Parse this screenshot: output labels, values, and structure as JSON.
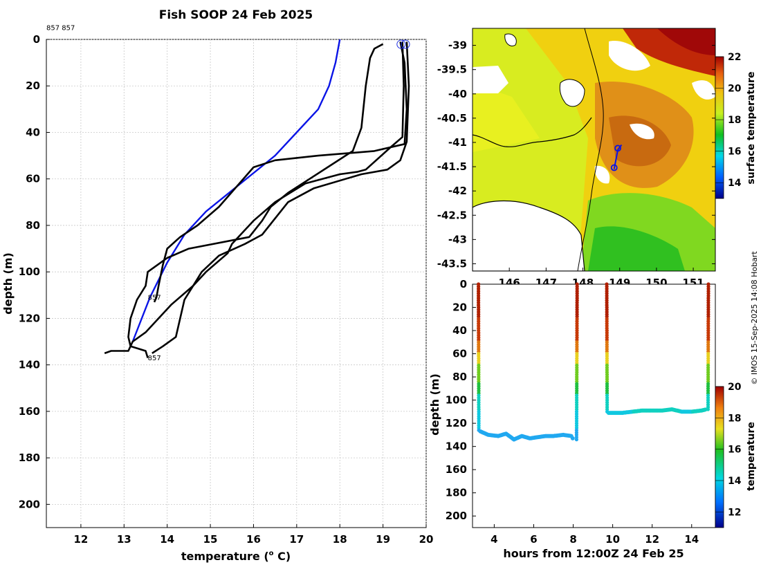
{
  "title": "Fish SOOP 24 Feb 2025",
  "credit": "© IMOS 15-Sep-2025 14:08 Hobart",
  "colors": {
    "profile_line": "#000000",
    "climatology_line": "#0a14e6",
    "marker": "#1f2fe0",
    "grid": "#c8c8c8",
    "land": "#ffffff",
    "coast": "#000000"
  },
  "chart_data": [
    {
      "name": "profile",
      "type": "line",
      "title": "Fish SOOP 24 Feb 2025",
      "xlabel": "temperature (",
      "xlabel_sup": "o",
      "xlabel_end": " C)",
      "ylabel": "depth (m)",
      "xlim": [
        11.2,
        20
      ],
      "ylim": [
        0,
        210
      ],
      "y_reversed": true,
      "xticks": [
        12,
        13,
        14,
        15,
        16,
        17,
        18,
        19,
        20
      ],
      "yticks": [
        0,
        20,
        40,
        60,
        80,
        100,
        120,
        140,
        160,
        180,
        200
      ],
      "grid": true,
      "annotations": [
        {
          "text": "857 857",
          "x": 11.2,
          "y": -4
        },
        {
          "text": "857",
          "x": 13.55,
          "y": 112
        },
        {
          "text": "857",
          "x": 13.55,
          "y": 138
        }
      ],
      "surface_markers": [
        {
          "x": 19.42,
          "y": 1.2
        },
        {
          "x": 19.52,
          "y": 1.2
        }
      ],
      "series": [
        {
          "name": "climatology",
          "color": "#0a14e6",
          "points": [
            [
              18.0,
              0
            ],
            [
              17.9,
              10
            ],
            [
              17.75,
              20
            ],
            [
              17.5,
              30
            ],
            [
              17.0,
              40
            ],
            [
              16.5,
              50
            ],
            [
              15.7,
              62
            ],
            [
              14.9,
              74
            ],
            [
              14.4,
              84
            ],
            [
              14.0,
              96
            ],
            [
              13.6,
              111
            ],
            [
              13.2,
              130
            ]
          ]
        },
        {
          "name": "cast-1",
          "color": "#000000",
          "points": [
            [
              19.4,
              1
            ],
            [
              19.5,
              10
            ],
            [
              19.55,
              30
            ],
            [
              19.5,
              45
            ],
            [
              18.8,
              48
            ],
            [
              17.5,
              50
            ],
            [
              16.5,
              52
            ],
            [
              16.0,
              55
            ],
            [
              15.2,
              72
            ],
            [
              14.7,
              80
            ],
            [
              14.3,
              85
            ],
            [
              14.0,
              90
            ],
            [
              13.9,
              97
            ],
            [
              13.8,
              106
            ],
            [
              13.75,
              111
            ],
            [
              13.7,
              113
            ]
          ]
        },
        {
          "name": "cast-2",
          "color": "#000000",
          "points": [
            [
              19.45,
              1
            ],
            [
              19.48,
              20
            ],
            [
              19.45,
              42
            ],
            [
              19.2,
              46
            ],
            [
              18.6,
              56
            ],
            [
              18.4,
              57
            ],
            [
              18.0,
              58
            ],
            [
              17.2,
              62
            ],
            [
              16.5,
              70
            ],
            [
              16.0,
              78
            ],
            [
              15.5,
              88
            ],
            [
              15.4,
              92
            ],
            [
              14.9,
              100
            ],
            [
              14.6,
              106
            ],
            [
              14.1,
              114
            ],
            [
              13.5,
              126
            ],
            [
              13.2,
              130
            ],
            [
              13.1,
              134
            ],
            [
              12.7,
              134
            ],
            [
              12.55,
              135
            ]
          ]
        },
        {
          "name": "cast-3",
          "color": "#000000",
          "points": [
            [
              19.0,
              2
            ],
            [
              18.8,
              4
            ],
            [
              18.7,
              8
            ],
            [
              18.6,
              20
            ],
            [
              18.5,
              38
            ],
            [
              18.3,
              48
            ],
            [
              17.8,
              54
            ],
            [
              17.3,
              60
            ],
            [
              16.8,
              66
            ],
            [
              16.4,
              72
            ],
            [
              16.2,
              78
            ],
            [
              15.9,
              85
            ],
            [
              14.5,
              90
            ],
            [
              14.0,
              94
            ],
            [
              13.55,
              100
            ],
            [
              13.5,
              106
            ],
            [
              13.3,
              112
            ],
            [
              13.15,
              120
            ],
            [
              13.1,
              128
            ],
            [
              13.15,
              132
            ],
            [
              13.5,
              134
            ],
            [
              13.55,
              137
            ]
          ]
        },
        {
          "name": "cast-4",
          "color": "#000000",
          "points": [
            [
              19.55,
              1
            ],
            [
              19.6,
              20
            ],
            [
              19.55,
              44
            ],
            [
              19.4,
              52
            ],
            [
              19.1,
              56
            ],
            [
              18.5,
              58
            ],
            [
              17.4,
              64
            ],
            [
              16.8,
              70
            ],
            [
              16.2,
              84
            ],
            [
              15.8,
              88
            ],
            [
              15.2,
              93
            ],
            [
              14.8,
              100
            ],
            [
              14.6,
              106
            ],
            [
              14.4,
              112
            ],
            [
              14.3,
              120
            ],
            [
              14.2,
              128
            ],
            [
              13.9,
              132
            ],
            [
              13.65,
              135
            ]
          ]
        }
      ]
    },
    {
      "name": "sst-map",
      "type": "heatmap",
      "xlim": [
        145.0,
        151.6
      ],
      "ylim": [
        -43.65,
        -38.65
      ],
      "xticks": [
        146,
        147,
        148,
        149,
        150,
        151
      ],
      "yticks": [
        -39,
        -39.5,
        -40,
        -40.5,
        -41,
        -41.5,
        -42,
        -42.5,
        -43,
        -43.5
      ],
      "colorbar_label": "surface temperature",
      "colorbar_range": [
        13,
        22
      ],
      "colorbar_ticks": [
        14,
        16,
        18,
        20,
        22
      ],
      "track": [
        [
          149.05,
          -41.05
        ],
        [
          148.95,
          -41.15
        ],
        [
          148.9,
          -41.35
        ],
        [
          148.85,
          -41.55
        ]
      ],
      "markers": [
        [
          148.95,
          -41.12
        ],
        [
          148.85,
          -41.52
        ]
      ]
    },
    {
      "name": "depth-time",
      "type": "scatter",
      "xlabel": "hours from 12:00Z 24 Feb 25",
      "ylabel": "depth (m)",
      "xlim": [
        2.9,
        15.2
      ],
      "ylim": [
        0,
        210
      ],
      "y_reversed": true,
      "xticks": [
        4,
        6,
        8,
        10,
        12,
        14
      ],
      "yticks": [
        0,
        20,
        40,
        60,
        80,
        100,
        120,
        140,
        160,
        180,
        200
      ],
      "colorbar_label": "temperature",
      "colorbar_range": [
        11,
        20
      ],
      "colorbar_ticks": [
        12,
        14,
        16,
        18,
        20
      ],
      "segments": [
        {
          "x": [
            3.2,
            3.3
          ],
          "descent": true,
          "bottom": 126
        },
        {
          "x": [
            3.3,
            8.0
          ],
          "bottom_track": [
            [
              3.3,
              127
            ],
            [
              3.7,
              130
            ],
            [
              4.2,
              131
            ],
            [
              4.6,
              129
            ],
            [
              5.0,
              134
            ],
            [
              5.4,
              131
            ],
            [
              5.8,
              133
            ],
            [
              6.2,
              132
            ],
            [
              6.6,
              131
            ],
            [
              7.0,
              131
            ],
            [
              7.5,
              130
            ],
            [
              7.9,
              131
            ],
            [
              8.05,
              135
            ]
          ]
        },
        {
          "x": [
            8.05,
            8.2
          ],
          "ascent": true,
          "bottom": 135
        },
        {
          "x": [
            9.7,
            9.8
          ],
          "descent": true,
          "bottom": 110
        },
        {
          "x": [
            9.8,
            14.7
          ],
          "bottom_track": [
            [
              9.8,
              111
            ],
            [
              10.5,
              111
            ],
            [
              11.0,
              110
            ],
            [
              11.5,
              109
            ],
            [
              12.0,
              109
            ],
            [
              12.5,
              109
            ],
            [
              13.0,
              108
            ],
            [
              13.5,
              110
            ],
            [
              14.0,
              110
            ],
            [
              14.5,
              109
            ],
            [
              14.75,
              108
            ]
          ]
        },
        {
          "x": [
            14.75,
            14.85
          ],
          "ascent": true,
          "bottom": 108
        }
      ]
    }
  ]
}
